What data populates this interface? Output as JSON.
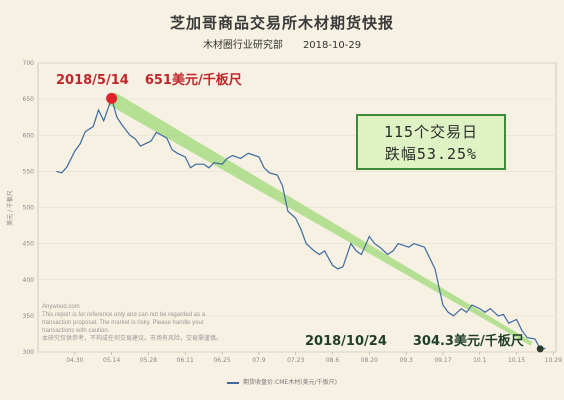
{
  "header": {
    "title": "芝加哥商品交易所木材期货快报",
    "source": "木材圈行业研究部",
    "date": "2018-10-29"
  },
  "annotations": {
    "start_date": "2018/5/14",
    "start_value": "651美元/千板尺",
    "end_date": "2018/10/24",
    "end_value": "304.3美元/千板尺",
    "box_line1": "115个交易日",
    "box_line2": "跌幅53.25%"
  },
  "disclaimer": {
    "line1": "Anywood.com",
    "line2": "This report is for reference only and can not be regarded as a",
    "line3": "transaction proposal. The market is risky. Please handle your",
    "line4": "transactions with caution.",
    "line5": "本研究仅供参考，不构成任何交易建议。市场有风险，交易需谨慎。"
  },
  "colors": {
    "line": "#3e6aa0",
    "trend": "#9fd97a",
    "start_marker": "#e0242b",
    "end_marker": "#2a3a2a"
  },
  "chart_data": {
    "type": "line",
    "ylabel": "美元 / 千板尺",
    "ylim": [
      300,
      700
    ],
    "yticks": [
      300,
      350,
      400,
      450,
      500,
      550,
      600,
      650,
      700
    ],
    "xtick_labels": [
      "04.30",
      "05.14",
      "05.28",
      "06.11",
      "06.25",
      "07.9",
      "07.23",
      "08.6",
      "08.20",
      "09.3",
      "09.17",
      "10.1",
      "10.15",
      "10.29"
    ],
    "legend": "期货收盘价:CME木材(美元/千板尺)",
    "series": [
      {
        "name": "期货收盘价:CME木材(美元/千板尺)",
        "x": [
          "2018-04-23",
          "2018-04-25",
          "2018-04-27",
          "2018-04-30",
          "2018-05-02",
          "2018-05-04",
          "2018-05-07",
          "2018-05-09",
          "2018-05-11",
          "2018-05-14",
          "2018-05-16",
          "2018-05-18",
          "2018-05-21",
          "2018-05-23",
          "2018-05-25",
          "2018-05-29",
          "2018-05-31",
          "2018-06-04",
          "2018-06-06",
          "2018-06-08",
          "2018-06-11",
          "2018-06-13",
          "2018-06-15",
          "2018-06-18",
          "2018-06-20",
          "2018-06-22",
          "2018-06-25",
          "2018-06-27",
          "2018-06-29",
          "2018-07-02",
          "2018-07-05",
          "2018-07-09",
          "2018-07-11",
          "2018-07-13",
          "2018-07-16",
          "2018-07-18",
          "2018-07-20",
          "2018-07-23",
          "2018-07-25",
          "2018-07-27",
          "2018-07-30",
          "2018-08-01",
          "2018-08-03",
          "2018-08-06",
          "2018-08-08",
          "2018-08-10",
          "2018-08-13",
          "2018-08-15",
          "2018-08-17",
          "2018-08-20",
          "2018-08-22",
          "2018-08-24",
          "2018-08-27",
          "2018-08-29",
          "2018-08-31",
          "2018-09-04",
          "2018-09-06",
          "2018-09-10",
          "2018-09-12",
          "2018-09-14",
          "2018-09-17",
          "2018-09-19",
          "2018-09-21",
          "2018-09-24",
          "2018-09-26",
          "2018-09-28",
          "2018-10-01",
          "2018-10-03",
          "2018-10-05",
          "2018-10-08",
          "2018-10-10",
          "2018-10-12",
          "2018-10-15",
          "2018-10-17",
          "2018-10-19",
          "2018-10-22",
          "2018-10-24",
          "2018-10-26"
        ],
        "values": [
          550,
          548,
          556,
          578,
          588,
          605,
          612,
          635,
          620,
          651,
          625,
          614,
          600,
          595,
          585,
          592,
          604,
          596,
          580,
          575,
          570,
          555,
          560,
          560,
          555,
          562,
          560,
          568,
          572,
          568,
          575,
          570,
          555,
          548,
          545,
          530,
          495,
          485,
          470,
          450,
          440,
          435,
          440,
          420,
          415,
          418,
          450,
          440,
          435,
          460,
          450,
          445,
          435,
          440,
          450,
          445,
          450,
          445,
          430,
          415,
          365,
          355,
          350,
          360,
          355,
          365,
          360,
          355,
          360,
          350,
          352,
          340,
          345,
          330,
          320,
          318,
          304.3,
          305
        ]
      }
    ],
    "trend_line": {
      "from": {
        "x": "2018-05-14",
        "y": 651
      },
      "to": {
        "x": "2018-10-24",
        "y": 304.3
      }
    },
    "highlight_points": [
      {
        "x": "2018-05-14",
        "y": 651
      },
      {
        "x": "2018-10-24",
        "y": 304.3
      }
    ]
  }
}
